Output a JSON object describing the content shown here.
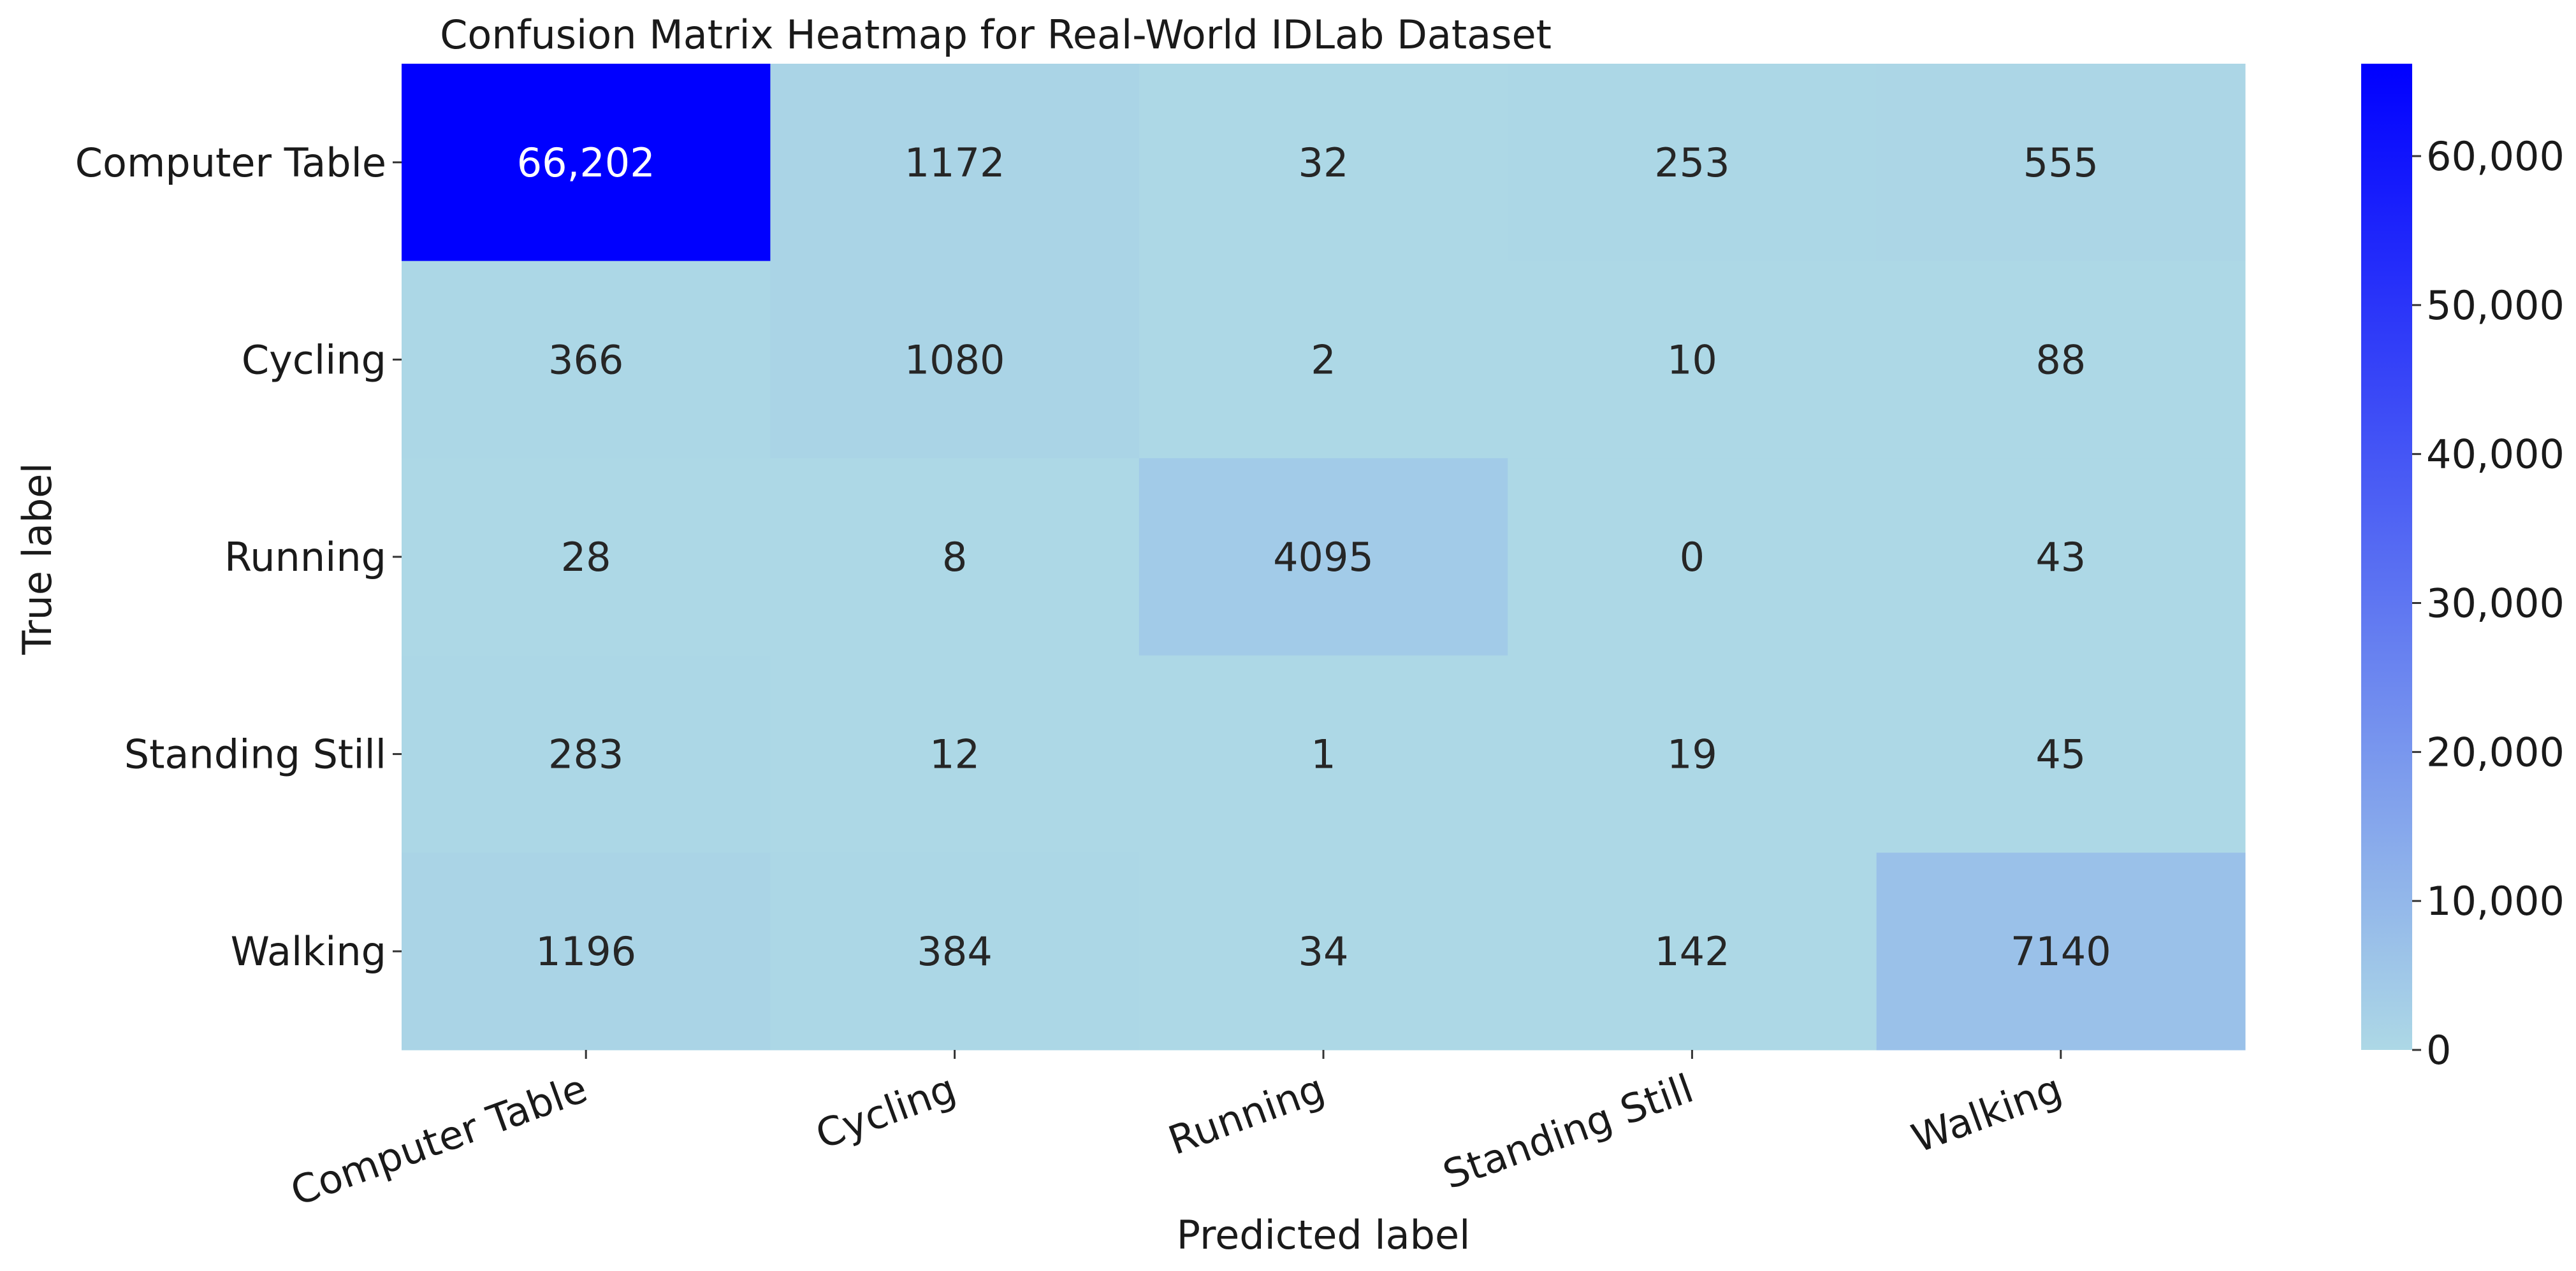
{
  "chart_data": {
    "type": "heatmap",
    "title": "Confusion Matrix Heatmap for Real-World IDLab Dataset",
    "xlabel": "Predicted label",
    "ylabel": "True label",
    "x_categories": [
      "Computer Table",
      "Cycling",
      "Running",
      "Standing Still",
      "Walking"
    ],
    "y_categories": [
      "Computer Table",
      "Cycling",
      "Running",
      "Standing Still",
      "Walking"
    ],
    "values": [
      [
        66202,
        1172,
        32,
        253,
        555
      ],
      [
        366,
        1080,
        2,
        10,
        88
      ],
      [
        28,
        8,
        4095,
        0,
        43
      ],
      [
        283,
        12,
        1,
        19,
        45
      ],
      [
        1196,
        384,
        34,
        142,
        7140
      ]
    ],
    "cell_labels": [
      [
        "66,202",
        "1172",
        "32",
        "253",
        "555"
      ],
      [
        "366",
        "1080",
        "2",
        "10",
        "88"
      ],
      [
        "28",
        "8",
        "4095",
        "0",
        "43"
      ],
      [
        "283",
        "12",
        "1",
        "19",
        "45"
      ],
      [
        "1196",
        "384",
        "34",
        "142",
        "7140"
      ]
    ],
    "colorbar": {
      "range": [
        0,
        66202
      ],
      "ticks": [
        0,
        10000,
        20000,
        30000,
        40000,
        50000,
        60000
      ],
      "tick_labels": [
        "0",
        "10,000",
        "20,000",
        "30,000",
        "40,000",
        "50,000",
        "60,000"
      ],
      "color_low": "#add8e6",
      "color_high": "#0000ff"
    },
    "text_color_dark": "#262626",
    "text_color_light": "#ffffff"
  }
}
